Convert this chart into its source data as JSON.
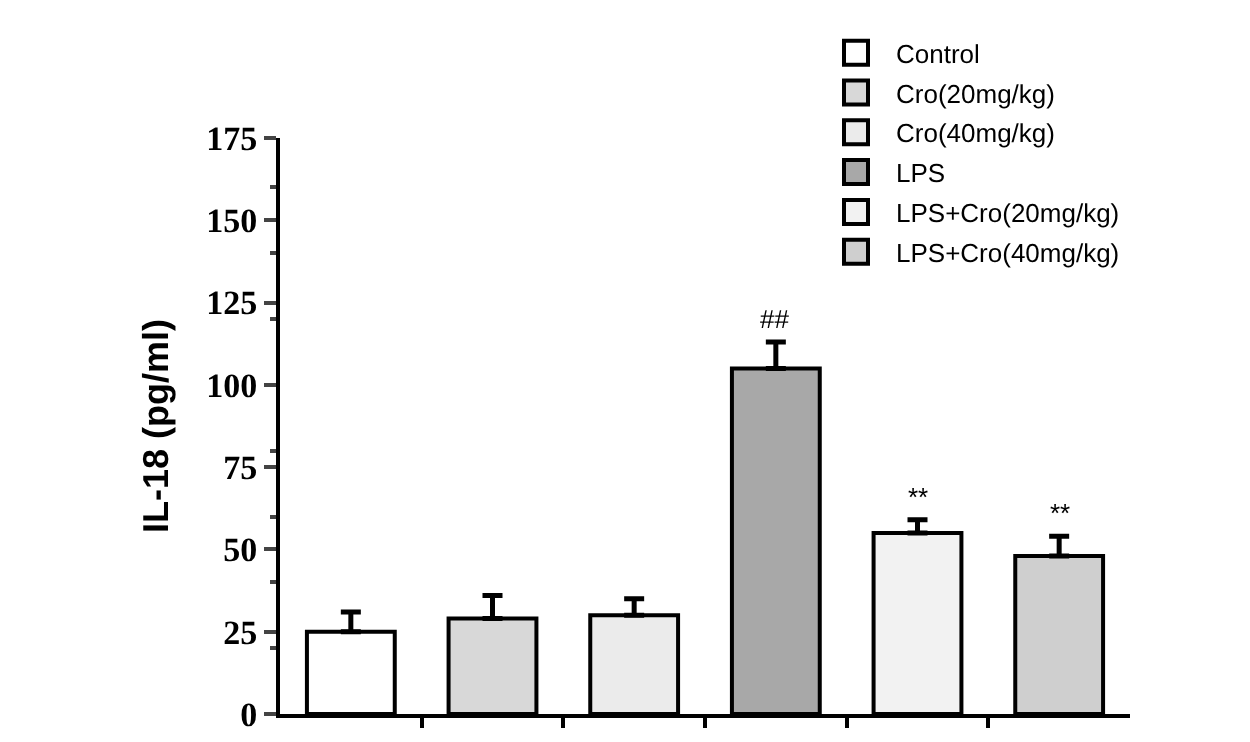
{
  "chart_data": {
    "type": "bar",
    "ylabel": "IL-18 (pg/ml)",
    "categories": [
      null,
      null,
      null,
      null,
      null,
      null
    ],
    "series": [
      {
        "name": "Control",
        "color": "#ffffff",
        "values": [
          25,
          null,
          null,
          null,
          null,
          null
        ],
        "errors": [
          6,
          null,
          null,
          null,
          null,
          null
        ]
      },
      {
        "name": "Cro(20mg/kg)",
        "color": "#d8d8d8",
        "values": [
          null,
          29,
          null,
          null,
          null,
          null
        ],
        "errors": [
          null,
          7,
          null,
          null,
          null,
          null
        ]
      },
      {
        "name": "Cro(40mg/kg)",
        "color": "#ebebeb",
        "values": [
          null,
          null,
          30,
          null,
          null,
          null
        ],
        "errors": [
          null,
          null,
          5,
          null,
          null,
          null
        ]
      },
      {
        "name": "LPS",
        "color": "#a8a8a8",
        "values": [
          null,
          null,
          null,
          105,
          null,
          null
        ],
        "errors": [
          null,
          null,
          null,
          8,
          null,
          null
        ],
        "value_labels": [
          null,
          null,
          null,
          "##",
          null,
          null
        ]
      },
      {
        "name": "LPS+Cro(20mg/kg)",
        "color": "#f2f2f2",
        "values": [
          null,
          null,
          null,
          null,
          55,
          null
        ],
        "errors": [
          null,
          null,
          null,
          null,
          4,
          null
        ],
        "value_labels": [
          null,
          null,
          null,
          null,
          "**",
          null
        ]
      },
      {
        "name": "LPS+Cro(40mg/kg)",
        "color": "#cfcfcf",
        "values": [
          null,
          null,
          null,
          null,
          null,
          48
        ],
        "errors": [
          null,
          null,
          null,
          null,
          null,
          6
        ],
        "value_labels": [
          null,
          null,
          null,
          null,
          null,
          "**"
        ]
      }
    ],
    "ylim": [
      0,
      175
    ],
    "yticks": [
      0,
      25,
      50,
      75,
      100,
      125,
      150,
      175
    ],
    "tick_labels": "y",
    "legend": "top right",
    "grid": false
  }
}
